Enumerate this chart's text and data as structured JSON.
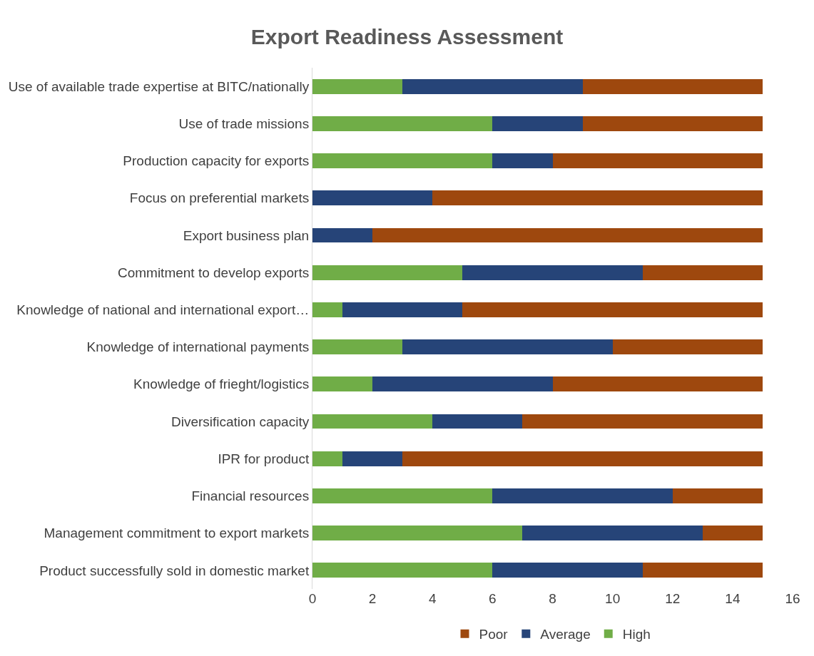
{
  "chart_data": {
    "type": "bar",
    "orientation": "horizontal",
    "stacked": true,
    "title": "Export Readiness Assessment",
    "categories": [
      "Use of available trade expertise at BITC/nationally",
      "Use of trade missions",
      "Production capacity for exports",
      "Focus on preferential markets",
      "Export business plan",
      "Commitment to develop exports",
      "Knowledge of national and international export…",
      "Knowledge of international payments",
      "Knowledge of frieght/logistics",
      "Diversification capacity",
      "IPR for product",
      "Financial resources",
      "Management commitment to export markets",
      "Product successfully sold in domestic market"
    ],
    "series": [
      {
        "name": "High",
        "color": "#70ad47",
        "values": [
          3,
          6,
          6,
          0,
          0,
          5,
          1,
          3,
          2,
          4,
          1,
          6,
          7,
          6
        ]
      },
      {
        "name": "Average",
        "color": "#264478",
        "values": [
          6,
          3,
          2,
          4,
          2,
          6,
          4,
          7,
          6,
          3,
          2,
          6,
          6,
          5
        ]
      },
      {
        "name": "Poor",
        "color": "#9e480e",
        "values": [
          6,
          6,
          7,
          11,
          13,
          4,
          10,
          5,
          7,
          8,
          12,
          3,
          2,
          4
        ]
      }
    ],
    "xlim": [
      0,
      16
    ],
    "xticks": [
      0,
      2,
      4,
      6,
      8,
      10,
      12,
      14,
      16
    ],
    "grid": false,
    "legend": "bottom"
  }
}
